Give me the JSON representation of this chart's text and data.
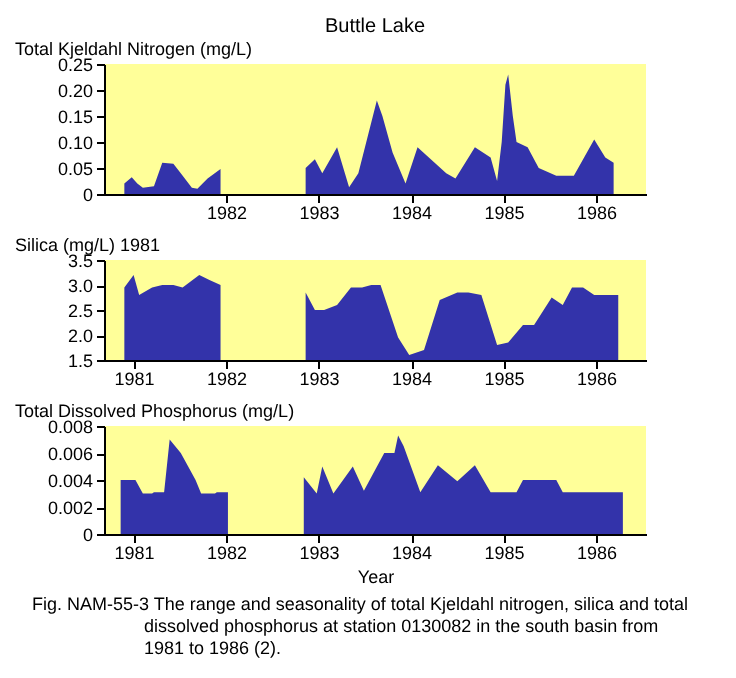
{
  "chart_data": [
    {
      "type": "area",
      "title": "Buttle Lake",
      "ylabel": "Total Kjeldahl Nitrogen (mg/L)",
      "xlim": [
        1980.68,
        1986.54
      ],
      "xticks": [
        1982,
        1983,
        1984,
        1985,
        1986
      ],
      "ylim": [
        0,
        0.25
      ],
      "yticks": [
        0,
        0.05,
        {
          "value": 0.1,
          "label": "0.10"
        },
        0.15,
        {
          "value": 0.2,
          "label": "0.20"
        },
        0.25
      ],
      "x": [
        1980.9,
        1980.98,
        1981.04,
        1981.1,
        1981.22,
        1981.31,
        1981.43,
        1981.51,
        1981.63,
        1981.69,
        1981.8,
        1981.94,
        1982.4,
        1982.86,
        1982.96,
        1983.04,
        1983.2,
        1983.33,
        1983.43,
        1983.63,
        1983.69,
        1983.8,
        1983.94,
        1984.07,
        1984.38,
        1984.48,
        1984.69,
        1984.86,
        1984.93,
        1984.98,
        1985.02,
        1985.05,
        1985.1,
        1985.14,
        1985.26,
        1985.38,
        1985.57,
        1985.76,
        1985.98,
        1986.1,
        1986.19
      ],
      "series": [
        {
          "color": "#3333aa",
          "values": [
            0.02,
            0.032,
            0.02,
            0.012,
            0.015,
            0.06,
            0.058,
            0.04,
            0.012,
            0.01,
            0.03,
            0.048,
            null,
            0.05,
            0.067,
            0.04,
            0.09,
            0.013,
            0.04,
            0.18,
            0.15,
            0.08,
            0.02,
            0.09,
            0.04,
            0.03,
            0.09,
            0.07,
            0.025,
            0.1,
            0.21,
            0.23,
            0.15,
            0.1,
            0.09,
            0.05,
            0.035,
            0.035,
            0.105,
            0.07,
            0.06
          ]
        }
      ]
    },
    {
      "type": "area",
      "ylabel": "Silica (mg/L) 1981",
      "xlim": [
        1980.68,
        1986.54
      ],
      "xticks": [
        1981,
        1982,
        1983,
        1984,
        1985,
        1986
      ],
      "ylim": [
        1.5,
        3.5
      ],
      "yticks": [
        1.5,
        {
          "value": 2,
          "label": "2.0"
        },
        2.5,
        {
          "value": 3,
          "label": "3.0"
        },
        3.5
      ],
      "x": [
        1980.9,
        1981.0,
        1981.06,
        1981.2,
        1981.31,
        1981.43,
        1981.53,
        1981.71,
        1981.82,
        1981.94,
        1982.4,
        1982.86,
        1982.96,
        1983.06,
        1983.2,
        1983.35,
        1983.47,
        1983.57,
        1983.67,
        1983.86,
        1983.98,
        1984.14,
        1984.31,
        1984.5,
        1984.62,
        1984.76,
        1984.93,
        1985.05,
        1985.21,
        1985.33,
        1985.52,
        1985.64,
        1985.74,
        1985.86,
        1985.98,
        1986.24
      ],
      "series": [
        {
          "color": "#3333aa",
          "values": [
            2.95,
            3.2,
            2.8,
            2.95,
            3.0,
            3.0,
            2.95,
            3.2,
            3.1,
            3.0,
            null,
            2.85,
            2.5,
            2.5,
            2.6,
            2.95,
            2.95,
            3.0,
            3.0,
            1.95,
            1.6,
            1.7,
            2.7,
            2.85,
            2.85,
            2.8,
            1.8,
            1.85,
            2.2,
            2.2,
            2.75,
            2.6,
            2.95,
            2.95,
            2.8,
            2.8
          ]
        }
      ]
    },
    {
      "type": "area",
      "ylabel": "Total Dissolved Phosphorus (mg/L)",
      "xlabel": "Year",
      "xlim": [
        1980.68,
        1986.54
      ],
      "xticks": [
        1981,
        1982,
        1983,
        1984,
        1985,
        1986
      ],
      "ylim": [
        0,
        0.008
      ],
      "yticks": [
        0,
        0.002,
        0.004,
        0.006,
        0.008
      ],
      "annotations": [
        "Fig. NAM-55-3  The range and seasonality of total Kjeldahl nitrogen, silica and total dissolved phosphorus at station 0130082 in the south basin from 1981 to 1986 (2)."
      ],
      "x": [
        1980.86,
        1981.02,
        1981.1,
        1981.2,
        1981.22,
        1981.33,
        1981.39,
        1981.51,
        1981.67,
        1981.73,
        1981.88,
        1981.9,
        1982.02,
        1982.4,
        1982.84,
        1982.98,
        1983.04,
        1983.16,
        1983.37,
        1983.49,
        1983.71,
        1983.82,
        1983.86,
        1983.92,
        1984.1,
        1984.29,
        1984.5,
        1984.69,
        1984.86,
        1985.14,
        1985.21,
        1985.57,
        1985.64,
        1986.29
      ],
      "series": [
        {
          "color": "#3333aa",
          "values": [
            0.004,
            0.004,
            0.003,
            0.003,
            0.0031,
            0.0031,
            0.007,
            0.006,
            0.004,
            0.003,
            0.003,
            0.0031,
            0.0031,
            null,
            0.0042,
            0.003,
            0.005,
            0.003,
            0.005,
            0.0032,
            0.006,
            0.006,
            0.0073,
            0.0065,
            0.0031,
            0.0051,
            0.0039,
            0.0051,
            0.0031,
            0.0031,
            0.004,
            0.004,
            0.0031,
            0.0031
          ]
        }
      ]
    }
  ]
}
